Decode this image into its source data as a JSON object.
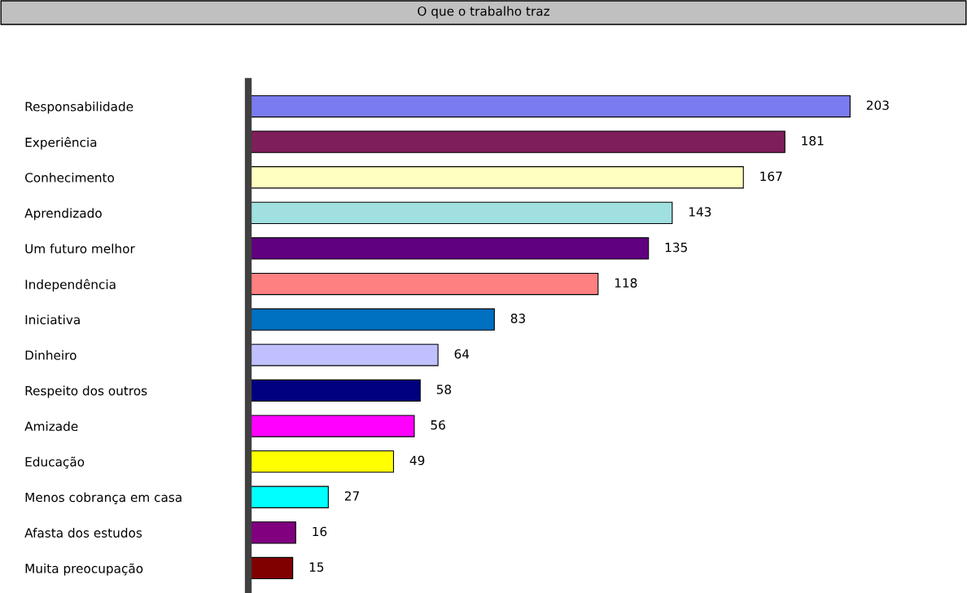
{
  "chart_data": {
    "type": "bar",
    "orientation": "horizontal",
    "title": "O que o trabalho traz",
    "categories": [
      "Responsabilidade",
      "Experiência",
      "Conhecimento",
      "Aprendizado",
      "Um futuro melhor",
      "Independência",
      "Iniciativa",
      "Dinheiro",
      "Respeito dos outros",
      "Amizade",
      "Educação",
      "Menos cobrança em casa",
      "Afasta dos estudos",
      "Muita preocupação"
    ],
    "values": [
      203,
      181,
      167,
      143,
      135,
      118,
      83,
      64,
      58,
      56,
      49,
      27,
      16,
      15
    ],
    "colors": [
      "#7b7bf0",
      "#7e1e5a",
      "#ffffc0",
      "#a0e0e0",
      "#600080",
      "#ff8080",
      "#0070c0",
      "#c0c0ff",
      "#000080",
      "#ff00ff",
      "#ffff00",
      "#00ffff",
      "#800080",
      "#800000"
    ],
    "data_labels": true,
    "grid": false,
    "legend": false
  }
}
